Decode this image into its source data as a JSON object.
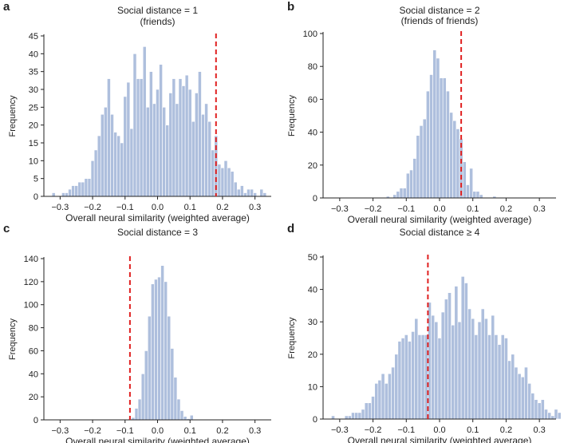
{
  "figure": {
    "panel_labels": [
      "a",
      "b",
      "c",
      "d"
    ]
  },
  "chart_data": [
    {
      "type": "bar",
      "label": "a",
      "title": "Social distance = 1",
      "subtitle": "(friends)",
      "xlabel": "Overall neural similarity (weighted average)",
      "ylabel": "Frequency",
      "xlim": [
        -0.35,
        0.35
      ],
      "ylim": [
        0,
        45
      ],
      "xticks": [
        -0.3,
        -0.2,
        -0.1,
        0.0,
        0.1,
        0.2,
        0.3
      ],
      "xtick_labels": [
        "−0.3",
        "−0.2",
        "−0.1",
        "0.0",
        "0.1",
        "0.2",
        "0.3"
      ],
      "yticks": [
        0,
        5,
        10,
        15,
        20,
        25,
        30,
        35,
        40,
        45
      ],
      "bin_start": -0.325,
      "bin_width": 0.01,
      "values": [
        1,
        0,
        0,
        1,
        1,
        2,
        3,
        3,
        4,
        4,
        5,
        5,
        10,
        13,
        17,
        23,
        25,
        33,
        23,
        18,
        17,
        15,
        28,
        32,
        19,
        40,
        33,
        33,
        42,
        25,
        35,
        26,
        30,
        37,
        25,
        20,
        29,
        33,
        26,
        33,
        31,
        34,
        30,
        21,
        29,
        35,
        23,
        26,
        21,
        13,
        17,
        9,
        8,
        10,
        8,
        7,
        4,
        2,
        3,
        1,
        2,
        2,
        1,
        0,
        2,
        1
      ],
      "threshold": 0.18,
      "bar_color": "#aebfdd",
      "line_color": "#e02020"
    },
    {
      "type": "bar",
      "label": "b",
      "title": "Social distance = 2",
      "subtitle": "(friends of friends)",
      "xlabel": "Overall neural similarity (weighted average)",
      "ylabel": "Frequency",
      "xlim": [
        -0.35,
        0.35
      ],
      "ylim": [
        0,
        100
      ],
      "xticks": [
        -0.3,
        -0.2,
        -0.1,
        0.0,
        0.1,
        0.2,
        0.3
      ],
      "xtick_labels": [
        "−0.3",
        "−0.2",
        "−0.1",
        "0.0",
        "0.1",
        "0.2",
        "0.3"
      ],
      "yticks": [
        0,
        20,
        40,
        60,
        80,
        100
      ],
      "bin_start": -0.16,
      "bin_width": 0.01,
      "values": [
        1,
        0,
        2,
        4,
        6,
        6,
        15,
        17,
        24,
        38,
        44,
        48,
        65,
        75,
        90,
        85,
        73,
        73,
        65,
        52,
        47,
        42,
        36,
        22,
        8,
        18,
        4,
        4,
        2,
        0,
        0,
        0,
        1
      ],
      "threshold": 0.065,
      "bar_color": "#aebfdd",
      "line_color": "#e02020"
    },
    {
      "type": "bar",
      "label": "c",
      "title": "Social distance = 3",
      "subtitle": "",
      "xlabel": "Overall neural similarity (weighted average)",
      "ylabel": "Frequency",
      "xlim": [
        -0.35,
        0.35
      ],
      "ylim": [
        0,
        140
      ],
      "xticks": [
        -0.3,
        -0.2,
        -0.1,
        0.0,
        0.1,
        0.2,
        0.3
      ],
      "xtick_labels": [
        "−0.3",
        "−0.2",
        "−0.1",
        "0.0",
        "0.1",
        "0.2",
        "0.3"
      ],
      "yticks": [
        0,
        20,
        40,
        60,
        80,
        100,
        120,
        140
      ],
      "bin_start": -0.09,
      "bin_width": 0.01,
      "values": [
        1,
        2,
        10,
        18,
        40,
        60,
        90,
        118,
        122,
        124,
        134,
        120,
        90,
        62,
        37,
        18,
        8,
        3,
        1,
        4
      ],
      "threshold": -0.085,
      "bar_color": "#aebfdd",
      "line_color": "#e02020"
    },
    {
      "type": "bar",
      "label": "d",
      "title": "Social distance ≥ 4",
      "subtitle": "",
      "xlabel": "Overall neural similarity (weighted average)",
      "ylabel": "Frequency",
      "xlim": [
        -0.35,
        0.35
      ],
      "ylim": [
        0,
        50
      ],
      "xticks": [
        -0.3,
        -0.2,
        -0.1,
        0.0,
        0.1,
        0.2,
        0.3
      ],
      "xtick_labels": [
        "−0.3",
        "−0.2",
        "−0.1",
        "0.0",
        "0.1",
        "0.2",
        "0.3"
      ],
      "yticks": [
        0,
        10,
        20,
        30,
        40,
        50
      ],
      "bin_start": -0.325,
      "bin_width": 0.01,
      "values": [
        1,
        0,
        0,
        0,
        1,
        1,
        2,
        2,
        2,
        3,
        5,
        5,
        7,
        11,
        12,
        14,
        11,
        14,
        16,
        20,
        24,
        25,
        26,
        24,
        27,
        31,
        26,
        26,
        26,
        36,
        32,
        30,
        25,
        33,
        37,
        39,
        29,
        41,
        30,
        44,
        42,
        34,
        31,
        26,
        30,
        34,
        31,
        26,
        32,
        26,
        23,
        26,
        25,
        18,
        20,
        16,
        14,
        13,
        16,
        11,
        8,
        6,
        5,
        6,
        3,
        2,
        1,
        3,
        2,
        0
      ],
      "threshold": -0.035,
      "bar_color": "#aebfdd",
      "line_color": "#e02020"
    }
  ]
}
